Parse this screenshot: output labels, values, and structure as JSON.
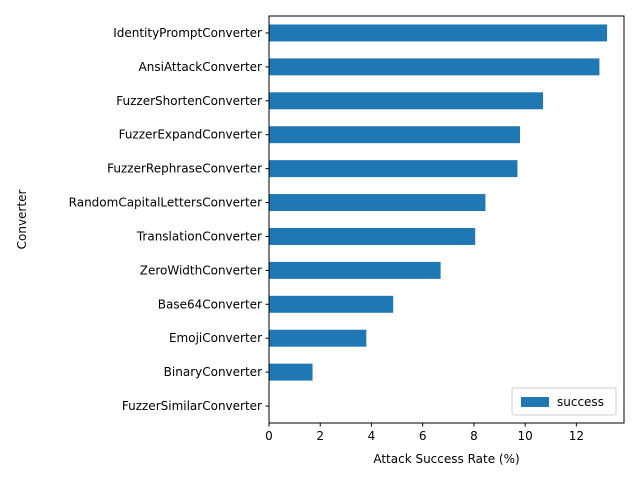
{
  "chart_data": {
    "type": "bar",
    "orientation": "horizontal",
    "categories": [
      "IdentityPromptConverter",
      "AnsiAttackConverter",
      "FuzzerShortenConverter",
      "FuzzerExpandConverter",
      "FuzzerRephraseConverter",
      "RandomCapitalLettersConverter",
      "TranslationConverter",
      "ZeroWidthConverter",
      "Base64Converter",
      "EmojiConverter",
      "BinaryConverter",
      "FuzzerSimilarConverter"
    ],
    "series": [
      {
        "name": "success",
        "color": "#1f77b4",
        "values": [
          13.2,
          12.9,
          10.7,
          9.8,
          9.7,
          8.45,
          8.05,
          6.7,
          4.85,
          3.8,
          1.7,
          0
        ]
      }
    ],
    "title": "",
    "xlabel": "Attack Success Rate (%)",
    "ylabel": "Converter",
    "xlim": [
      0,
      13.86
    ],
    "xticks": [
      0,
      2,
      4,
      6,
      8,
      10,
      12
    ],
    "grid": false,
    "legend_position": "lower-right"
  }
}
